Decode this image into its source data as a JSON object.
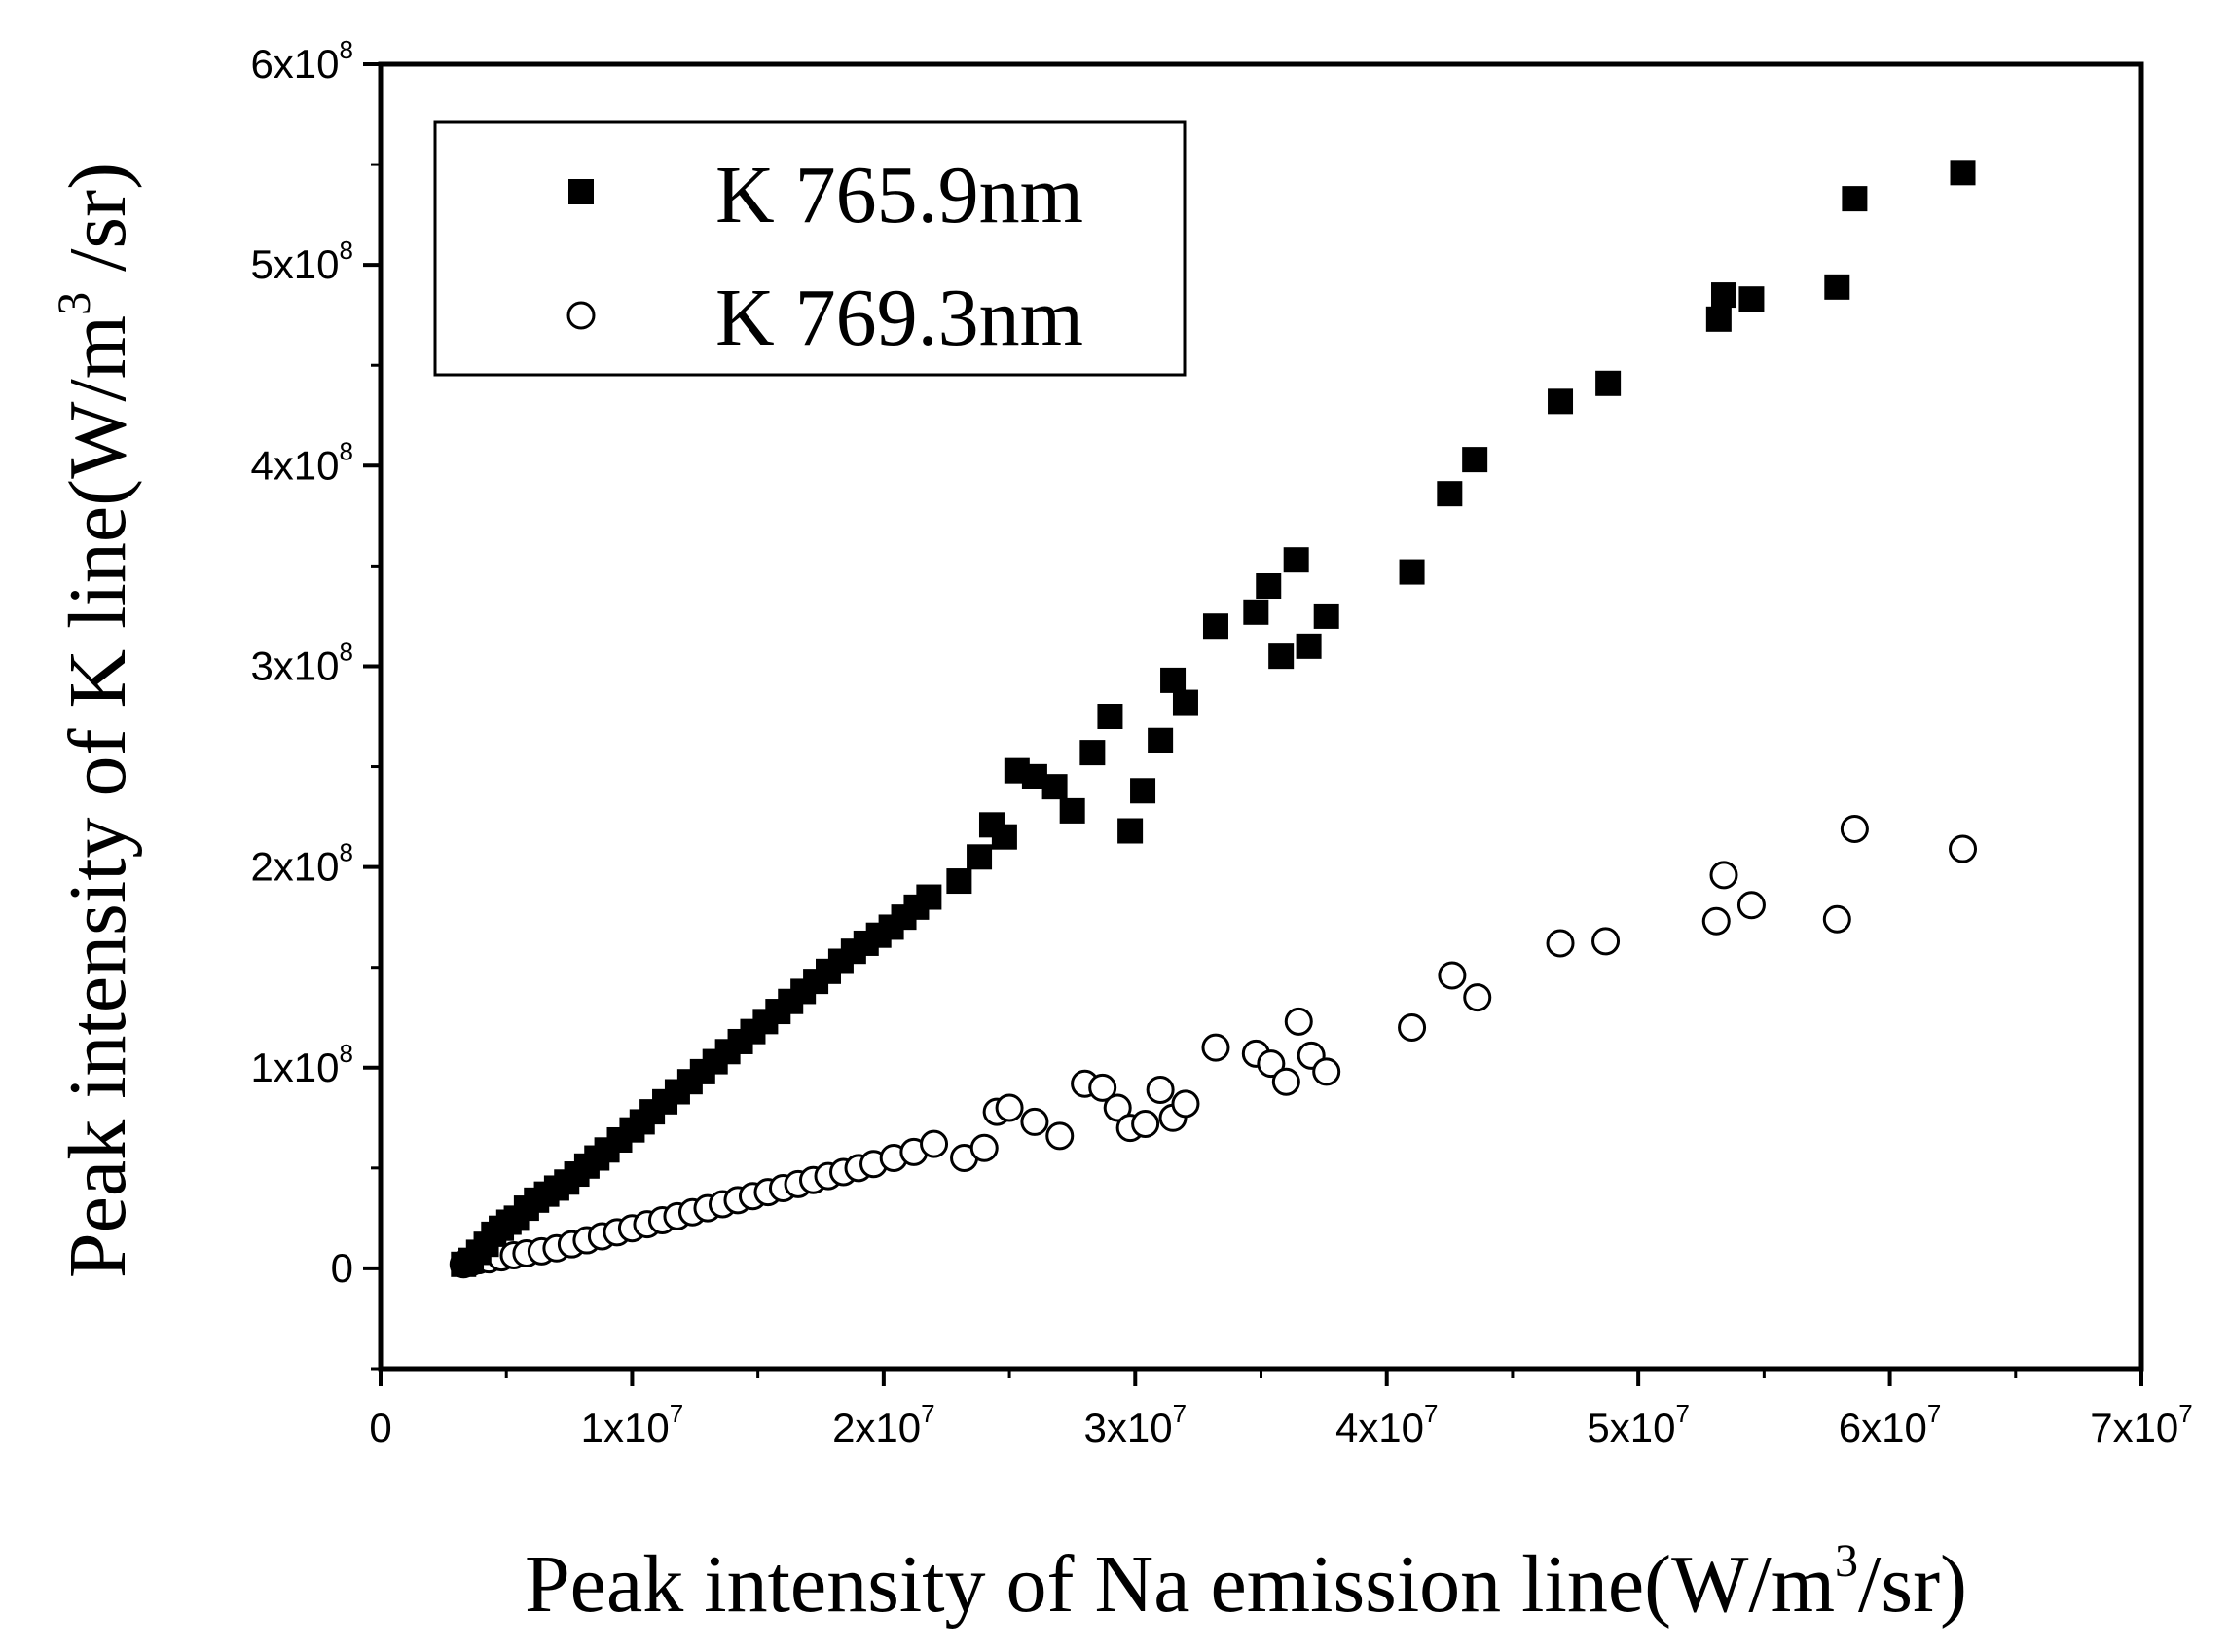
{
  "chart_data": {
    "type": "scatter",
    "title": "",
    "xlabel": {
      "main": "Peak intensity of Na emission line(W/m",
      "sup": "3",
      "tail": "/sr)"
    },
    "ylabel": {
      "main": "Peak intensity of K line(W/m",
      "sup": "3",
      "tail": " /sr)"
    },
    "xlim": [
      0,
      70000000
    ],
    "ylim": [
      -50000000,
      600000000
    ],
    "xticks": [
      {
        "value": 0,
        "base": "0",
        "exp": ""
      },
      {
        "value": 10000000,
        "base": "1x10",
        "exp": "7"
      },
      {
        "value": 20000000,
        "base": "2x10",
        "exp": "7"
      },
      {
        "value": 30000000,
        "base": "3x10",
        "exp": "7"
      },
      {
        "value": 40000000,
        "base": "4x10",
        "exp": "7"
      },
      {
        "value": 50000000,
        "base": "5x10",
        "exp": "7"
      },
      {
        "value": 60000000,
        "base": "6x10",
        "exp": "7"
      },
      {
        "value": 70000000,
        "base": "7x10",
        "exp": "7"
      }
    ],
    "yticks": [
      {
        "value": 0,
        "base": "0",
        "exp": ""
      },
      {
        "value": 100000000,
        "base": "1x10",
        "exp": "8"
      },
      {
        "value": 200000000,
        "base": "2x10",
        "exp": "8"
      },
      {
        "value": 300000000,
        "base": "3x10",
        "exp": "8"
      },
      {
        "value": 400000000,
        "base": "4x10",
        "exp": "8"
      },
      {
        "value": 500000000,
        "base": "5x10",
        "exp": "8"
      },
      {
        "value": 600000000,
        "base": "6x10",
        "exp": "8"
      }
    ],
    "grid": false,
    "legend_position": "top-left",
    "series": [
      {
        "name": "K 765.9nm",
        "marker": "filled-square",
        "color": "#000000",
        "x": [
          3300000,
          3600000,
          3900000,
          4200000,
          4500000,
          4800000,
          5100000,
          5400000,
          5800000,
          6200000,
          6600000,
          7000000,
          7400000,
          7800000,
          8200000,
          8600000,
          9000000,
          9500000,
          10000000,
          10400000,
          10800000,
          11300000,
          11800000,
          12300000,
          12800000,
          13300000,
          13800000,
          14300000,
          14800000,
          15300000,
          15800000,
          16300000,
          16800000,
          17300000,
          17800000,
          18300000,
          18800000,
          19300000,
          19800000,
          20300000,
          20800000,
          21300000,
          21800000,
          23000000,
          23800000,
          24300000,
          24800000,
          25300000,
          26000000,
          26800000,
          27500000,
          28300000,
          29000000,
          29800000,
          30300000,
          31000000,
          31500000,
          32000000,
          33200000,
          34800000,
          35300000,
          35800000,
          36400000,
          36900000,
          37600000,
          41000000,
          42500000,
          43500000,
          46900000,
          48800000,
          53200000,
          53400000,
          54500000,
          57900000,
          58600000,
          62900000
        ],
        "y": [
          2000000,
          4000000,
          8000000,
          12000000,
          17000000,
          20000000,
          23000000,
          25000000,
          30000000,
          34000000,
          37000000,
          40000000,
          43000000,
          47000000,
          51000000,
          55000000,
          59000000,
          64000000,
          69000000,
          73000000,
          78000000,
          83000000,
          88000000,
          93000000,
          98000000,
          103000000,
          108000000,
          113000000,
          118000000,
          123000000,
          128000000,
          133000000,
          138000000,
          143000000,
          148000000,
          153000000,
          158000000,
          162000000,
          166000000,
          170000000,
          175000000,
          180000000,
          185000000,
          193000000,
          205000000,
          221000000,
          215000000,
          248000000,
          245000000,
          240000000,
          228000000,
          257000000,
          275000000,
          218000000,
          238000000,
          263000000,
          293000000,
          282000000,
          320000000,
          327000000,
          340000000,
          305000000,
          353000000,
          310000000,
          325000000,
          347000000,
          386000000,
          403000000,
          432000000,
          441000000,
          473000000,
          485000000,
          483000000,
          489000000,
          533000000,
          546000000
        ]
      },
      {
        "name": "K 769.3nm",
        "marker": "open-circle",
        "color": "#000000",
        "x": [
          3300000,
          3600000,
          3900000,
          4300000,
          4800000,
          5300000,
          5800000,
          6400000,
          7000000,
          7600000,
          8200000,
          8800000,
          9400000,
          10000000,
          10600000,
          11200000,
          11800000,
          12400000,
          13000000,
          13600000,
          14200000,
          14800000,
          15400000,
          16000000,
          16600000,
          17200000,
          17800000,
          18400000,
          19000000,
          19600000,
          20400000,
          21200000,
          22000000,
          23200000,
          24000000,
          24500000,
          25000000,
          26000000,
          27000000,
          28000000,
          28700000,
          29300000,
          29800000,
          30400000,
          31000000,
          31500000,
          32000000,
          33200000,
          34800000,
          35400000,
          36000000,
          36500000,
          37000000,
          37600000,
          41000000,
          42600000,
          43600000,
          46900000,
          48700000,
          53100000,
          53400000,
          54500000,
          57900000,
          58600000,
          62900000
        ],
        "y": [
          2000000,
          3000000,
          4000000,
          4500000,
          5500000,
          6500000,
          7500000,
          8500000,
          10000000,
          12000000,
          14000000,
          16000000,
          18000000,
          20000000,
          22000000,
          24000000,
          26000000,
          28000000,
          30000000,
          32000000,
          34000000,
          36000000,
          38000000,
          40000000,
          42000000,
          44000000,
          46000000,
          48000000,
          50000000,
          52000000,
          55000000,
          58000000,
          62000000,
          55000000,
          60000000,
          78000000,
          80000000,
          73000000,
          66000000,
          92000000,
          90000000,
          80000000,
          70000000,
          72000000,
          89000000,
          75000000,
          82000000,
          110000000,
          107000000,
          102000000,
          93000000,
          123000000,
          106000000,
          98000000,
          120000000,
          146000000,
          135000000,
          162000000,
          163000000,
          173000000,
          196000000,
          181000000,
          174000000,
          219000000,
          209000000
        ]
      }
    ]
  }
}
